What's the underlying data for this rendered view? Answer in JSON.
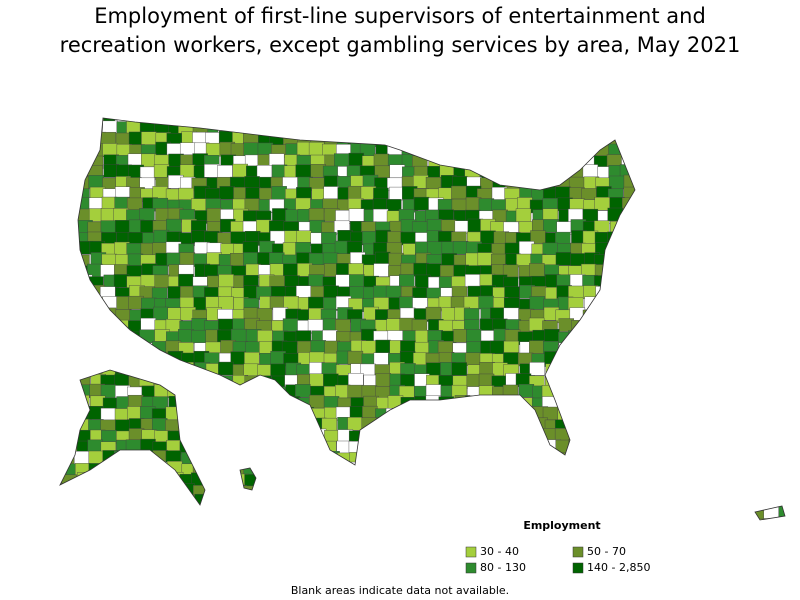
{
  "title": "Employment of first-line supervisors of entertainment and recreation workers, except gambling services by area, May 2021",
  "legend": {
    "title": "Employment",
    "items": [
      {
        "label": "30 - 40",
        "color": "#a4cf3c"
      },
      {
        "label": "50 - 70",
        "color": "#6b8f2a"
      },
      {
        "label": "80 - 130",
        "color": "#2e8b2e"
      },
      {
        "label": "140 - 2,850",
        "color": "#006400"
      }
    ]
  },
  "note": "Blank areas indicate data not available."
}
